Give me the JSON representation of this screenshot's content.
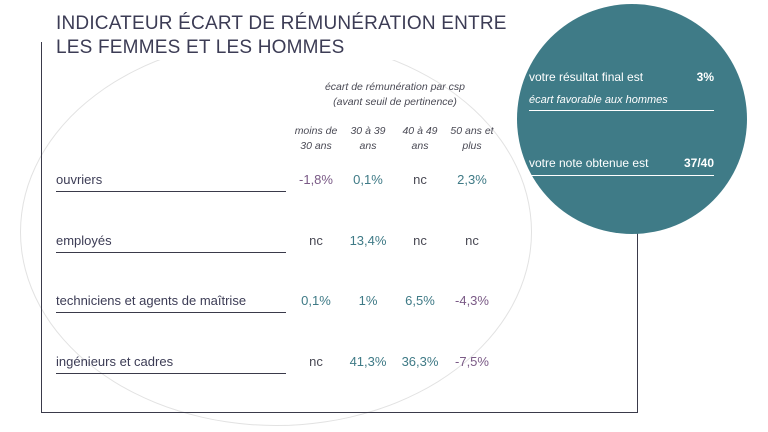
{
  "title": "INDICATEUR ÉCART DE RÉMUNÉRATION ENTRE LES FEMMES ET LES HOMMES",
  "table": {
    "subheader_line1": "écart de rémunération par csp",
    "subheader_line2": "(avant seuil de pertinence)",
    "columns": [
      {
        "line1": "moins de",
        "line2": "30 ans"
      },
      {
        "line1": "30 à 39",
        "line2": "ans"
      },
      {
        "line1": "40 à 49",
        "line2": "ans"
      },
      {
        "line1": "50 ans et",
        "line2": "plus"
      }
    ],
    "rows": [
      {
        "label": "ouvriers",
        "values": [
          "-1,8%",
          "0,1%",
          "nc",
          "2,3%"
        ]
      },
      {
        "label": "employés",
        "values": [
          "nc",
          "13,4%",
          "nc",
          "nc"
        ]
      },
      {
        "label": "techniciens et agents de maîtrise",
        "values": [
          "0,1%",
          "1%",
          "6,5%",
          "-4,3%"
        ]
      },
      {
        "label": "ingénieurs et cadres",
        "values": [
          "nc",
          "41,3%",
          "36,3%",
          "-7,5%"
        ]
      }
    ]
  },
  "summary": {
    "result_label": "votre résultat final est",
    "result_value": "3%",
    "result_note": "écart favorable aux hommes",
    "score_label": "votre note obtenue est",
    "score_value": "37/40"
  },
  "colors": {
    "circle": "#3f7b87",
    "negative": "#7a5a86",
    "positive": "#3f7a86"
  }
}
